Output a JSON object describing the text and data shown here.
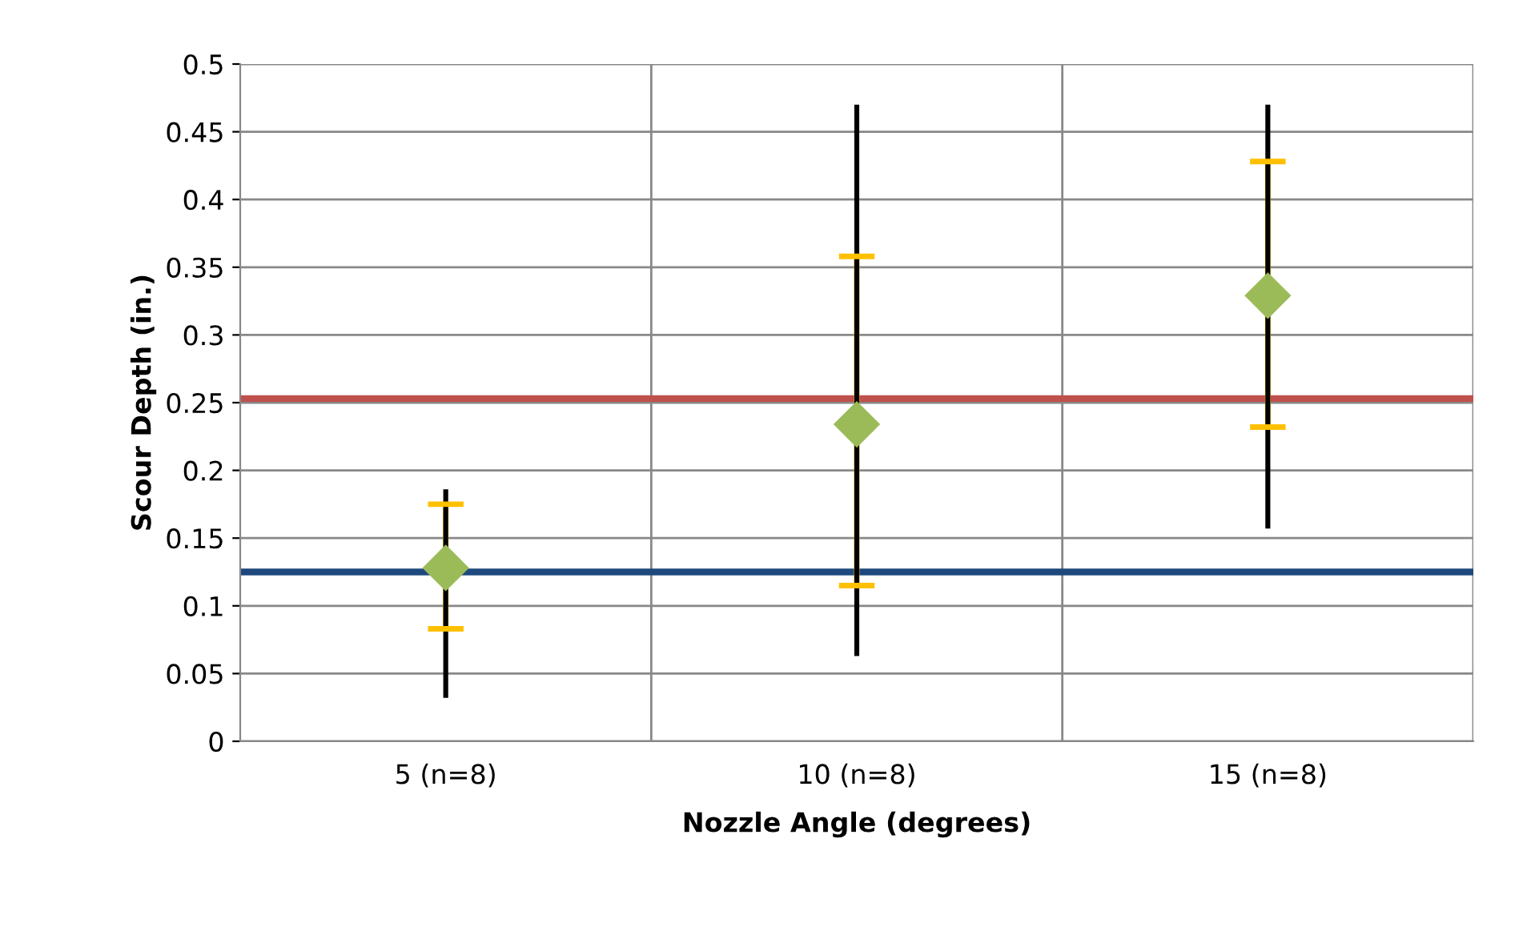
{
  "chart_data": {
    "type": "scatter",
    "xlabel": "Nozzle Angle (degrees)",
    "ylabel": "Scour Depth (in.)",
    "categories": [
      "5 (n=8)",
      "10 (n=8)",
      "15 (n=8)"
    ],
    "series": [
      {
        "type": "bar",
        "color": "#000000",
        "base": [
          0.032,
          0.063,
          0.157
        ],
        "values": [
          0.154,
          0.407,
          0.313
        ]
      },
      {
        "color": "#9bbb59",
        "marker": "diamond",
        "values": [
          0.128,
          0.234,
          0.329
        ],
        "errors": [
          [
            0.083,
            0.175
          ],
          [
            0.115,
            0.358
          ],
          [
            0.232,
            0.428
          ]
        ]
      }
    ],
    "ylim": [
      0,
      0.5
    ],
    "yticks": [
      0,
      0.05,
      0.1,
      0.15,
      0.2,
      0.25,
      0.3,
      0.35,
      0.4,
      0.45,
      0.5
    ],
    "ref_lines": [
      {
        "axis": "y",
        "value": 0.253,
        "color": "#c0504d"
      },
      {
        "axis": "y",
        "value": 0.125,
        "color": "#1f497d"
      }
    ],
    "grid": true,
    "legend": false
  }
}
